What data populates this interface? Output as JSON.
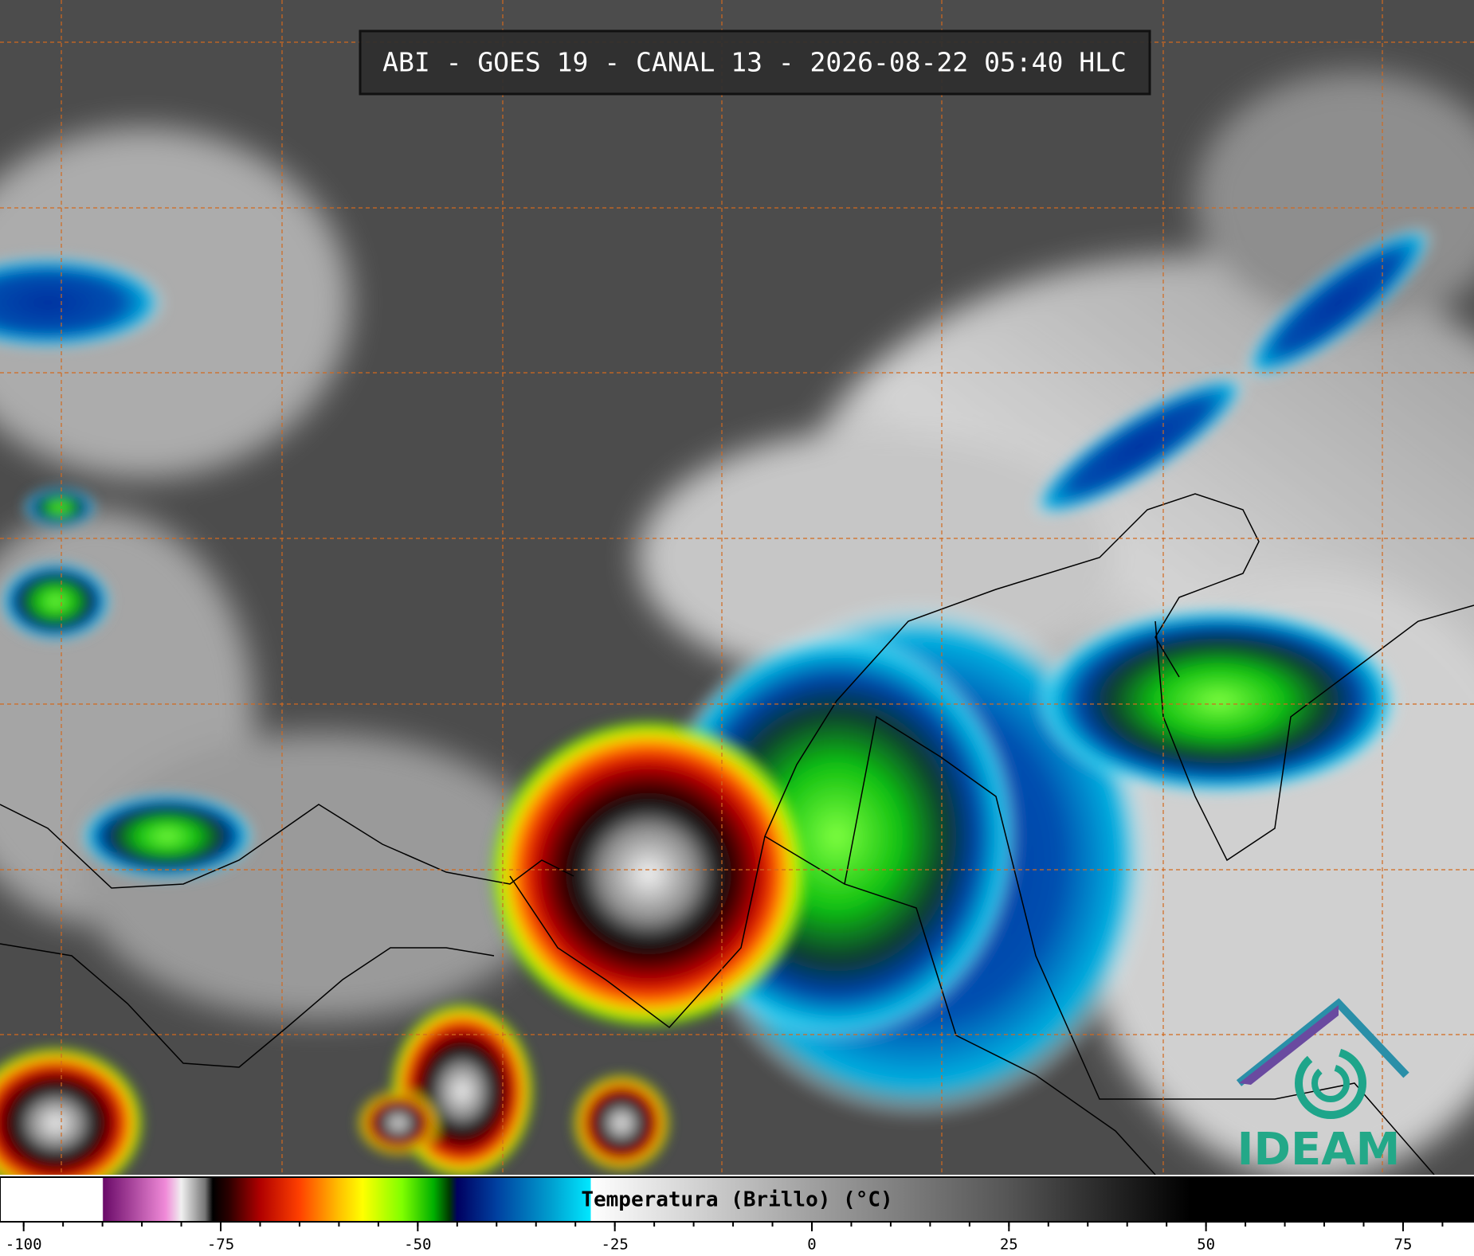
{
  "header": {
    "title": "ABI - GOES 19 - CANAL 13 - 2026-08-22 05:40 HLC"
  },
  "colorbar": {
    "label": "Temperatura (Brillo) (°C)",
    "xlim": [
      -103,
      84
    ],
    "xticks": [
      -100,
      -75,
      -50,
      -25,
      0,
      25,
      50,
      75
    ],
    "minor_xticks": [
      -100,
      -95,
      -90,
      -85,
      -80,
      -75,
      -70,
      -65,
      -60,
      -55,
      -50,
      -45,
      -40,
      -35,
      -30,
      -25,
      -20,
      -15,
      -10,
      -5,
      0,
      5,
      10,
      15,
      20,
      25,
      30,
      35,
      40,
      45,
      50,
      55,
      60,
      65,
      70,
      75,
      80
    ],
    "colormap": [
      {
        "value": -103,
        "color": "#ffffff"
      },
      {
        "value": -90,
        "color": "#ffffff"
      },
      {
        "value": -89.9,
        "color": "#6a0a68"
      },
      {
        "value": -82,
        "color": "#f08ad8"
      },
      {
        "value": -80,
        "color": "#f0f0f0"
      },
      {
        "value": -77,
        "color": "#777777"
      },
      {
        "value": -76,
        "color": "#000000"
      },
      {
        "value": -74,
        "color": "#2a0000"
      },
      {
        "value": -70,
        "color": "#b00000"
      },
      {
        "value": -65,
        "color": "#ff4000"
      },
      {
        "value": -60,
        "color": "#ffc000"
      },
      {
        "value": -57,
        "color": "#ffff00"
      },
      {
        "value": -52,
        "color": "#80ff00"
      },
      {
        "value": -48,
        "color": "#00b000"
      },
      {
        "value": -46,
        "color": "#003a00"
      },
      {
        "value": -45,
        "color": "#000060"
      },
      {
        "value": -40,
        "color": "#0040a0"
      },
      {
        "value": -33,
        "color": "#00a0d0"
      },
      {
        "value": -28.1,
        "color": "#00e8ff"
      },
      {
        "value": -28,
        "color": "#ffffff"
      },
      {
        "value": 0,
        "color": "#a0a0a0"
      },
      {
        "value": 25,
        "color": "#555555"
      },
      {
        "value": 48,
        "color": "#000000"
      },
      {
        "value": 84,
        "color": "#000000"
      }
    ]
  },
  "logo": {
    "text": "IDEAM"
  }
}
